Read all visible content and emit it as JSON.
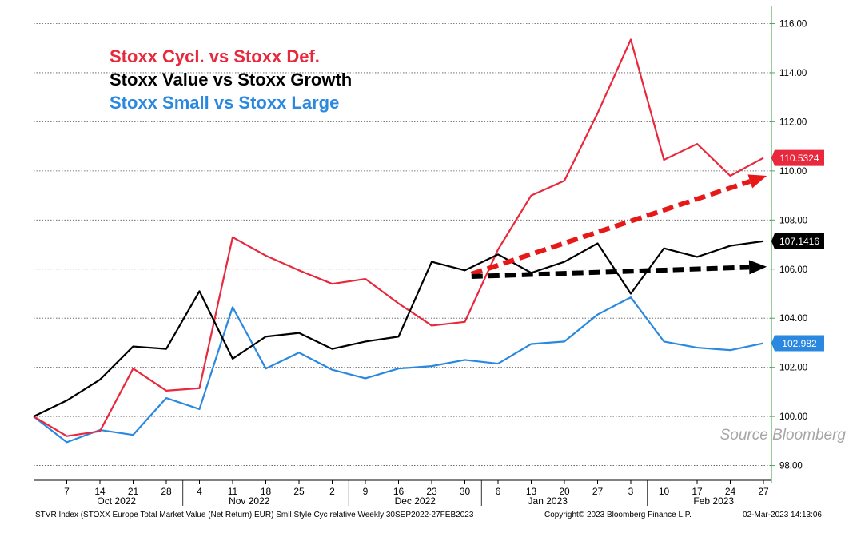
{
  "chart_data": {
    "type": "line",
    "legend": [
      {
        "label": "Stoxx Cycl. vs Stoxx Def.",
        "color": "#e8283c"
      },
      {
        "label": "Stoxx Value vs Stoxx Growth",
        "color": "#000000"
      },
      {
        "label": "Stoxx Small vs Stoxx Large",
        "color": "#2a88e0"
      }
    ],
    "legend_position": "top-left",
    "x_ticks": [
      "7",
      "14",
      "21",
      "28",
      "4",
      "11",
      "18",
      "25",
      "2",
      "9",
      "16",
      "23",
      "30",
      "6",
      "13",
      "20",
      "27",
      "3",
      "10",
      "17",
      "24",
      "27"
    ],
    "months": [
      {
        "label": "Oct 2022",
        "at_tick": 1.5
      },
      {
        "label": "Nov 2022",
        "at_tick": 5.5
      },
      {
        "label": "Dec 2022",
        "at_tick": 10.5
      },
      {
        "label": "Jan 2023",
        "at_tick": 14.5
      },
      {
        "label": "Feb 2023",
        "at_tick": 19.5
      }
    ],
    "month_separators": [
      3.5,
      8.5,
      12.5,
      17.5
    ],
    "ylim": [
      97.4,
      116.7
    ],
    "y_ticks": [
      98,
      100,
      102,
      104,
      106,
      108,
      110,
      112,
      114,
      116
    ],
    "y_tick_labels": [
      "98.00",
      "100.00",
      "102.00",
      "104.00",
      "106.00",
      "108.00",
      "110.00",
      "112.00",
      "114.00",
      "116.00"
    ],
    "y_axis_side": "right",
    "grid": "horizontal dotted",
    "series": [
      {
        "color": "#e8283c",
        "x": [
          -1,
          0,
          1,
          2,
          3,
          4,
          5,
          6,
          7,
          8,
          9,
          10,
          11,
          12,
          13,
          14,
          15,
          16,
          17,
          18,
          19,
          20,
          21
        ],
        "values": [
          100.0,
          99.2,
          99.4,
          101.95,
          101.05,
          101.15,
          107.3,
          106.55,
          105.95,
          105.4,
          105.6,
          104.6,
          103.7,
          103.85,
          106.8,
          109.0,
          109.6,
          112.35,
          115.35,
          110.45,
          111.1,
          109.8,
          110.53
        ],
        "last_label": "110.5324"
      },
      {
        "color": "#000000",
        "x": [
          -1,
          0,
          1,
          2,
          3,
          4,
          5,
          6,
          7,
          8,
          9,
          10,
          11,
          12,
          13,
          14,
          15,
          16,
          17,
          18,
          19,
          20,
          21
        ],
        "values": [
          100.0,
          100.65,
          101.5,
          102.85,
          102.75,
          105.1,
          102.35,
          103.25,
          103.4,
          102.75,
          103.05,
          103.25,
          106.3,
          105.95,
          106.6,
          105.85,
          106.3,
          107.05,
          105.0,
          106.85,
          106.5,
          106.95,
          107.14
        ],
        "last_label": "107.1416"
      },
      {
        "color": "#2a88e0",
        "x": [
          -1,
          0,
          1,
          2,
          3,
          4,
          5,
          6,
          7,
          8,
          9,
          10,
          11,
          12,
          13,
          14,
          15,
          16,
          17,
          18,
          19,
          20,
          21
        ],
        "values": [
          100.0,
          98.95,
          99.45,
          99.25,
          100.75,
          100.3,
          104.45,
          101.95,
          102.6,
          101.9,
          101.55,
          101.95,
          102.05,
          102.3,
          102.15,
          102.95,
          103.05,
          104.15,
          104.85,
          103.05,
          102.8,
          102.7,
          102.98
        ],
        "last_label": "102.982"
      }
    ],
    "annotations": [
      {
        "kind": "dashed-arrow",
        "color": "#e81818",
        "from": [
          12.2,
          105.8
        ],
        "to": [
          21.1,
          109.8
        ]
      },
      {
        "kind": "dashed-arrow",
        "color": "#000000",
        "from": [
          12.2,
          105.7
        ],
        "to": [
          21.1,
          106.1
        ]
      }
    ],
    "source_note": "Source Bloomberg",
    "footer": {
      "left": "STVR Index (STOXX Europe Total Market Value (Net Return) EUR) Smll Style Cyc relative  Weekly 30SEP2022-27FEB2023",
      "middle": "Copyright© 2023 Bloomberg Finance L.P.",
      "right": "02-Mar-2023 14:13:06"
    }
  }
}
